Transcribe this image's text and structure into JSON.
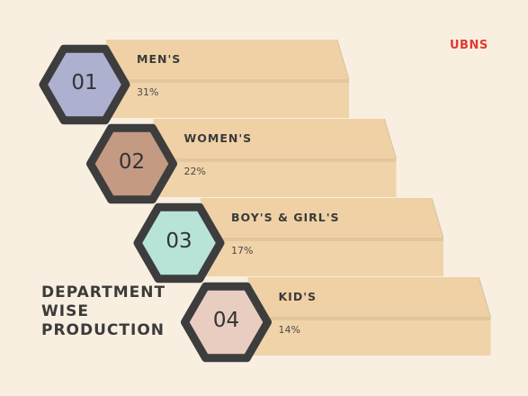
{
  "brand": "UBNS",
  "title_lines": [
    "DEPARTMENT",
    "WISE",
    "PRODUCTION"
  ],
  "colors": {
    "background": "#f8efe0",
    "bar": "#efd1a5",
    "hex_border": "#3d3d3d",
    "brand": "#e23b32"
  },
  "items": [
    {
      "number": "01",
      "label": "MEN'S",
      "value": "31%",
      "hex_color": "#aeb0d0"
    },
    {
      "number": "02",
      "label": "WOMEN'S",
      "value": "22%",
      "hex_color": "#c59a83"
    },
    {
      "number": "03",
      "label": "BOY'S & GIRL'S",
      "value": "17%",
      "hex_color": "#b7e3d9"
    },
    {
      "number": "04",
      "label": "KID'S",
      "value": "14%",
      "hex_color": "#e9cdc1"
    }
  ]
}
